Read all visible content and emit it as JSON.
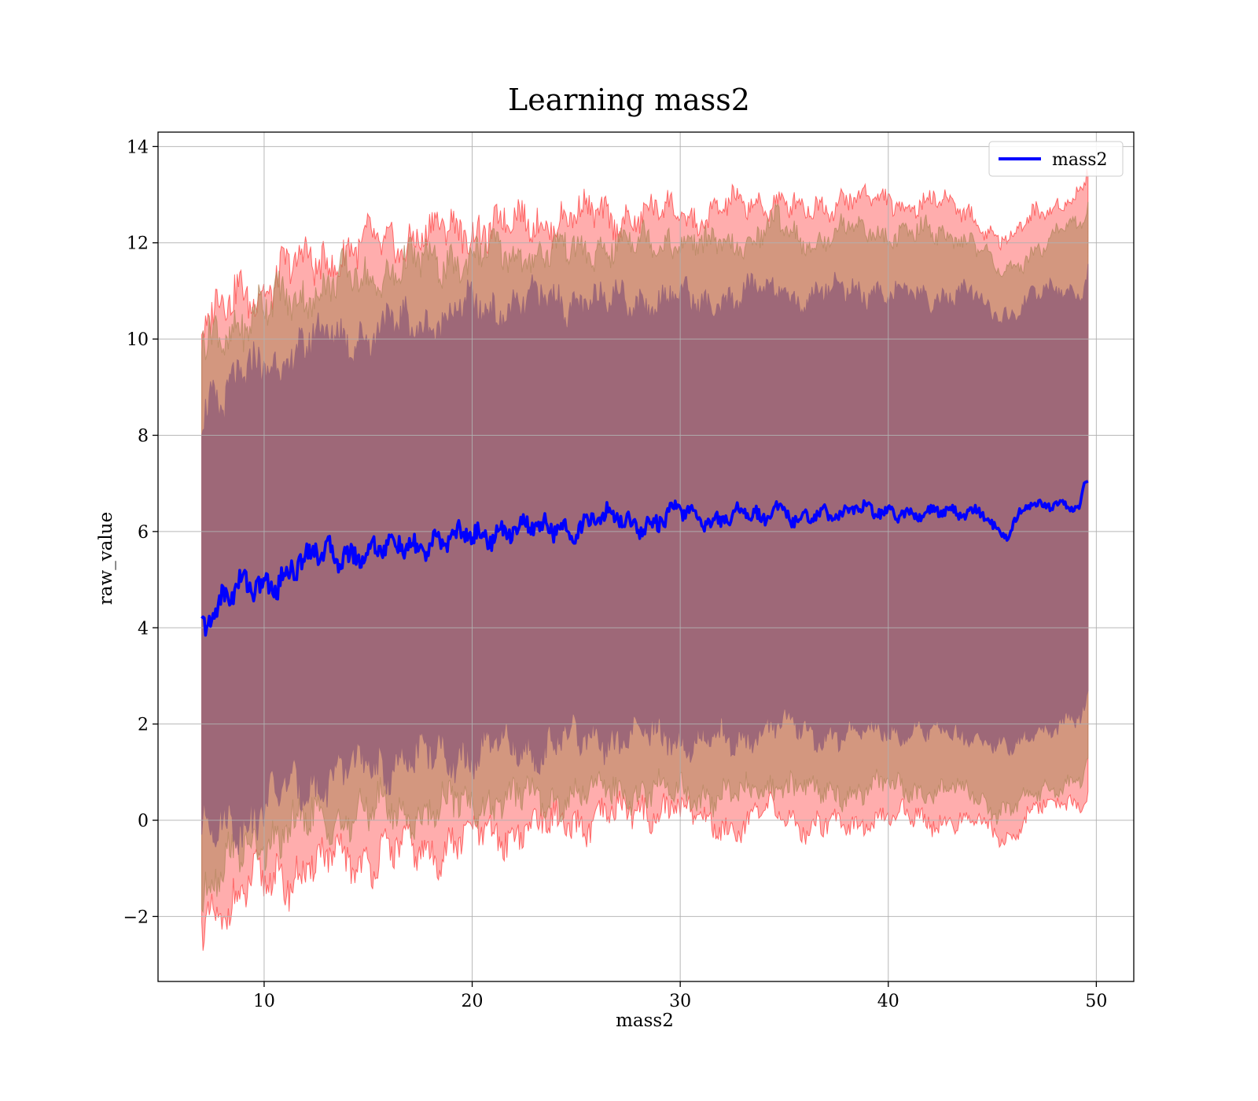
{
  "chart_data": {
    "type": "area",
    "title": "Learning mass2",
    "xlabel": "mass2",
    "ylabel": "raw_value",
    "xlim": [
      4.9,
      51.8
    ],
    "ylim": [
      -3.35,
      14.3
    ],
    "x_ticks": [
      10,
      20,
      30,
      40,
      50
    ],
    "x_tick_labels": [
      "10",
      "20",
      "30",
      "40",
      "50"
    ],
    "y_ticks": [
      -2,
      0,
      2,
      4,
      6,
      8,
      10,
      12,
      14
    ],
    "y_tick_labels": [
      "−2",
      "0",
      "2",
      "4",
      "6",
      "8",
      "10",
      "12",
      "14"
    ],
    "grid": true,
    "legend_position": "top-right",
    "legend": [
      {
        "label": "mass2",
        "color": "#0000ff"
      }
    ],
    "series": [
      {
        "name": "mass2",
        "color": "#0000ff",
        "x": [
          7.0,
          7.5,
          8.0,
          8.5,
          9.0,
          9.5,
          10.0,
          10.5,
          11.0,
          11.5,
          12.0,
          12.5,
          13.0,
          14.0,
          15.0,
          16.0,
          17.0,
          18.0,
          19.0,
          20.0,
          21.0,
          22.0,
          23.0,
          24.0,
          25.0,
          26.0,
          27.0,
          28.0,
          29.0,
          30.0,
          31.0,
          32.0,
          33.0,
          34.0,
          34.7,
          35.5,
          36.5,
          37.5,
          38.5,
          39.5,
          40.5,
          41.5,
          42.5,
          43.5,
          44.5,
          45.3,
          45.8,
          46.5,
          47.5,
          48.5,
          49.2,
          49.4,
          49.6
        ],
        "values": [
          4.1,
          4.4,
          4.6,
          4.7,
          4.8,
          4.8,
          4.9,
          5.0,
          5.2,
          5.3,
          5.4,
          5.5,
          5.5,
          5.6,
          5.6,
          5.6,
          5.7,
          5.8,
          5.8,
          5.9,
          6.0,
          6.1,
          6.0,
          6.1,
          6.1,
          6.2,
          6.3,
          6.2,
          6.2,
          6.4,
          6.3,
          6.3,
          6.4,
          6.2,
          6.6,
          6.3,
          6.3,
          6.3,
          6.6,
          6.4,
          6.3,
          6.4,
          6.5,
          6.3,
          6.4,
          6.0,
          6.0,
          6.5,
          6.5,
          6.6,
          6.5,
          7.0,
          7.05
        ]
      }
    ],
    "bands": [
      {
        "name": "outer",
        "color": "#ff0000",
        "opacity": 0.32,
        "x": [
          7.0,
          8.0,
          9.0,
          10.0,
          12.0,
          14.0,
          16.0,
          18.0,
          20.0,
          22.0,
          24.0,
          26.0,
          28.0,
          29.5,
          31.0,
          33.0,
          34.7,
          36.0,
          38.0,
          40.0,
          42.0,
          44.0,
          45.3,
          45.8,
          47.0,
          48.5,
          49.3,
          49.6
        ],
        "lower": [
          -2.1,
          -1.8,
          -1.6,
          -1.3,
          -1.0,
          -0.8,
          -0.7,
          -0.6,
          -0.4,
          -0.2,
          -0.1,
          0.0,
          0.2,
          0.3,
          0.0,
          -0.1,
          0.2,
          -0.1,
          -0.1,
          0.1,
          0.0,
          0.0,
          -0.3,
          -0.4,
          0.3,
          0.3,
          0.4,
          0.6
        ],
        "upper": [
          10.3,
          10.6,
          11.0,
          11.1,
          11.6,
          11.8,
          12.0,
          12.2,
          12.3,
          12.4,
          12.5,
          12.6,
          12.5,
          12.7,
          12.5,
          12.8,
          12.9,
          12.6,
          13.0,
          12.8,
          12.9,
          12.6,
          12.1,
          12.0,
          12.6,
          12.9,
          13.0,
          13.5
        ]
      },
      {
        "name": "middle",
        "color": "#b58860",
        "opacity": 0.6,
        "x": [
          7.0,
          8.0,
          9.0,
          10.0,
          12.0,
          14.0,
          16.0,
          18.0,
          20.0,
          22.0,
          24.0,
          26.0,
          28.0,
          29.5,
          31.0,
          33.0,
          34.7,
          36.0,
          38.0,
          40.0,
          42.0,
          44.0,
          45.3,
          45.8,
          47.0,
          48.5,
          49.3,
          49.6
        ],
        "lower": [
          -1.5,
          -1.0,
          -0.7,
          -0.4,
          -0.1,
          0.1,
          0.2,
          0.2,
          0.4,
          0.4,
          0.5,
          0.6,
          0.6,
          0.6,
          0.5,
          0.5,
          0.8,
          0.6,
          0.6,
          0.7,
          0.6,
          0.6,
          0.2,
          0.2,
          0.5,
          0.8,
          0.9,
          1.2
        ],
        "upper": [
          9.9,
          10.1,
          10.4,
          10.6,
          11.0,
          11.2,
          11.4,
          11.6,
          11.7,
          11.8,
          11.8,
          11.9,
          12.0,
          12.1,
          11.9,
          12.0,
          12.4,
          12.0,
          12.3,
          12.2,
          12.2,
          12.1,
          11.4,
          11.3,
          11.9,
          12.3,
          12.3,
          12.9
        ]
      },
      {
        "name": "inner",
        "color": "#9e6878",
        "opacity": 1.0,
        "x": [
          7.0,
          8.0,
          9.0,
          10.0,
          12.0,
          14.0,
          16.0,
          18.0,
          20.0,
          22.0,
          24.0,
          26.0,
          28.0,
          29.5,
          31.0,
          33.0,
          34.7,
          36.0,
          38.0,
          40.0,
          42.0,
          44.0,
          45.3,
          45.8,
          47.0,
          48.5,
          49.3,
          49.6
        ],
        "lower": [
          -0.4,
          -0.1,
          0.1,
          0.3,
          0.8,
          1.0,
          1.2,
          1.3,
          1.4,
          1.5,
          1.6,
          1.7,
          1.7,
          1.8,
          1.6,
          1.7,
          2.0,
          1.8,
          1.8,
          1.9,
          1.8,
          1.8,
          1.5,
          1.4,
          1.9,
          2.0,
          2.1,
          2.5
        ],
        "upper": [
          8.7,
          8.9,
          9.1,
          9.4,
          9.9,
          10.1,
          10.2,
          10.4,
          10.6,
          10.7,
          10.8,
          10.8,
          10.8,
          10.9,
          10.7,
          10.9,
          11.1,
          10.8,
          11.1,
          10.9,
          10.9,
          10.9,
          10.5,
          10.5,
          10.9,
          11.0,
          11.0,
          11.5
        ]
      }
    ]
  }
}
